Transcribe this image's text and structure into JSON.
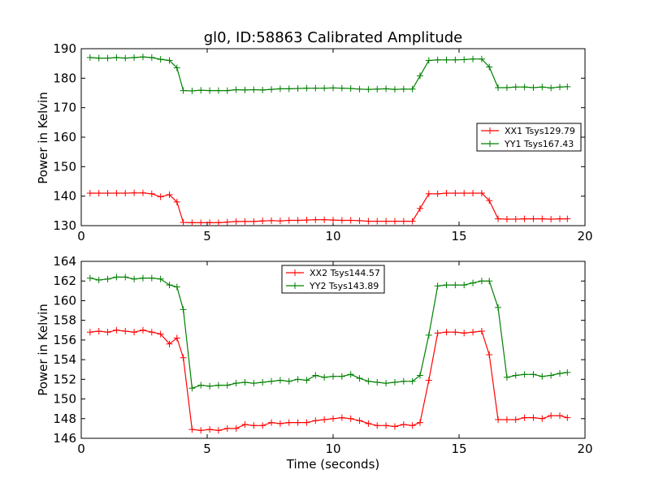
{
  "chart_data": [
    {
      "type": "line",
      "title": "gl0, ID:58863 Calibrated Amplitude",
      "xlabel": "",
      "ylabel": "Power in Kelvin",
      "xlim": [
        0,
        20
      ],
      "ylim": [
        130,
        190
      ],
      "xticks": [
        0,
        5,
        10,
        15,
        20
      ],
      "yticks": [
        130,
        140,
        150,
        160,
        170,
        180,
        190
      ],
      "legend_position": "center-right",
      "x": [
        0.35,
        0.7,
        1.05,
        1.4,
        1.75,
        2.1,
        2.45,
        2.8,
        3.15,
        3.5,
        3.8,
        4.05,
        4.4,
        4.75,
        5.1,
        5.45,
        5.8,
        6.15,
        6.5,
        6.85,
        7.2,
        7.55,
        7.9,
        8.25,
        8.6,
        8.95,
        9.3,
        9.65,
        10.0,
        10.35,
        10.7,
        11.05,
        11.4,
        11.75,
        12.1,
        12.45,
        12.8,
        13.15,
        13.45,
        13.8,
        14.15,
        14.5,
        14.85,
        15.2,
        15.55,
        15.9,
        16.2,
        16.55,
        16.9,
        17.25,
        17.6,
        17.95,
        18.3,
        18.65,
        19.0,
        19.3
      ],
      "series": [
        {
          "name": "XX1 Tsys129.79",
          "color": "#ff0000",
          "values": [
            141.0,
            141.0,
            141.0,
            141.0,
            141.0,
            141.1,
            141.1,
            140.8,
            139.8,
            140.5,
            138.0,
            131.1,
            131.0,
            131.0,
            131.0,
            131.0,
            131.2,
            131.4,
            131.4,
            131.4,
            131.6,
            131.7,
            131.6,
            131.8,
            131.8,
            131.9,
            132.0,
            132.0,
            131.9,
            131.8,
            131.8,
            131.7,
            131.5,
            131.5,
            131.5,
            131.5,
            131.5,
            131.5,
            135.8,
            140.8,
            140.8,
            141.0,
            141.0,
            141.0,
            141.0,
            141.0,
            138.5,
            132.3,
            132.2,
            132.2,
            132.3,
            132.3,
            132.3,
            132.2,
            132.3,
            132.3
          ]
        },
        {
          "name": "YY1 Tsys167.43",
          "color": "#008000",
          "values": [
            187.0,
            186.8,
            186.8,
            187.0,
            186.8,
            187.0,
            187.2,
            187.0,
            186.4,
            186.0,
            183.5,
            175.8,
            175.7,
            175.9,
            175.8,
            175.8,
            175.8,
            176.1,
            176.0,
            176.1,
            176.0,
            176.2,
            176.4,
            176.4,
            176.5,
            176.6,
            176.6,
            176.6,
            176.7,
            176.6,
            176.5,
            176.3,
            176.2,
            176.3,
            176.4,
            176.2,
            176.3,
            176.3,
            180.8,
            186.0,
            186.2,
            186.2,
            186.2,
            186.3,
            186.5,
            186.5,
            183.8,
            176.8,
            176.8,
            177.0,
            177.0,
            176.8,
            177.0,
            176.7,
            177.0,
            177.1
          ]
        }
      ]
    },
    {
      "type": "line",
      "title": "",
      "xlabel": "Time (seconds)",
      "ylabel": "Power in Kelvin",
      "xlim": [
        0,
        20
      ],
      "ylim": [
        146,
        164
      ],
      "xticks": [
        0,
        5,
        10,
        15,
        20
      ],
      "yticks": [
        146,
        148,
        150,
        152,
        154,
        156,
        158,
        160,
        162,
        164
      ],
      "legend_position": "upper-center",
      "x": [
        0.35,
        0.7,
        1.05,
        1.4,
        1.75,
        2.1,
        2.45,
        2.8,
        3.15,
        3.5,
        3.8,
        4.05,
        4.4,
        4.75,
        5.1,
        5.45,
        5.8,
        6.15,
        6.5,
        6.85,
        7.2,
        7.55,
        7.9,
        8.25,
        8.6,
        8.95,
        9.3,
        9.65,
        10.0,
        10.35,
        10.7,
        11.05,
        11.4,
        11.75,
        12.1,
        12.45,
        12.8,
        13.15,
        13.45,
        13.8,
        14.15,
        14.5,
        14.85,
        15.2,
        15.55,
        15.9,
        16.2,
        16.55,
        16.9,
        17.25,
        17.6,
        17.95,
        18.3,
        18.65,
        19.0,
        19.3
      ],
      "series": [
        {
          "name": "XX2 Tsys144.57",
          "color": "#ff0000",
          "values": [
            156.8,
            156.9,
            156.8,
            157.0,
            156.9,
            156.8,
            157.0,
            156.8,
            156.6,
            155.6,
            156.2,
            154.2,
            146.9,
            146.8,
            146.9,
            146.8,
            147.0,
            147.0,
            147.4,
            147.3,
            147.3,
            147.6,
            147.5,
            147.6,
            147.6,
            147.6,
            147.8,
            147.9,
            148.0,
            148.1,
            148.0,
            147.8,
            147.5,
            147.3,
            147.3,
            147.2,
            147.4,
            147.3,
            147.6,
            151.9,
            156.7,
            156.8,
            156.8,
            156.7,
            156.8,
            156.9,
            154.5,
            147.9,
            147.9,
            147.9,
            148.1,
            148.1,
            148.0,
            148.3,
            148.3,
            148.1
          ]
        },
        {
          "name": "YY2 Tsys143.89",
          "color": "#008000",
          "values": [
            162.3,
            162.1,
            162.2,
            162.4,
            162.4,
            162.2,
            162.3,
            162.3,
            162.2,
            161.6,
            161.4,
            159.1,
            151.1,
            151.4,
            151.3,
            151.4,
            151.4,
            151.6,
            151.7,
            151.6,
            151.7,
            151.8,
            151.9,
            151.8,
            152.0,
            151.9,
            152.4,
            152.2,
            152.3,
            152.3,
            152.5,
            152.1,
            151.8,
            151.7,
            151.6,
            151.7,
            151.8,
            151.8,
            152.4,
            156.5,
            161.5,
            161.6,
            161.6,
            161.6,
            161.8,
            162.0,
            162.0,
            159.3,
            152.2,
            152.4,
            152.5,
            152.5,
            152.3,
            152.4,
            152.6,
            152.7
          ]
        }
      ]
    }
  ]
}
